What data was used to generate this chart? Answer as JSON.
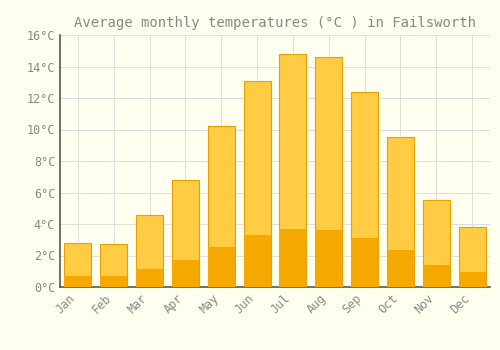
{
  "title": "Average monthly temperatures (°C ) in Failsworth",
  "months": [
    "Jan",
    "Feb",
    "Mar",
    "Apr",
    "May",
    "Jun",
    "Jul",
    "Aug",
    "Sep",
    "Oct",
    "Nov",
    "Dec"
  ],
  "values": [
    2.8,
    2.7,
    4.6,
    6.8,
    10.2,
    13.1,
    14.8,
    14.6,
    12.4,
    9.5,
    5.5,
    3.8
  ],
  "bar_color_top": "#FFCC44",
  "bar_color_bottom": "#F5A800",
  "bar_edge_color": "#E8A000",
  "background_color": "#FFFFF0",
  "grid_color": "#DDDDDD",
  "text_color": "#888888",
  "ylim": [
    0,
    16
  ],
  "yticks": [
    0,
    2,
    4,
    6,
    8,
    10,
    12,
    14,
    16
  ],
  "title_fontsize": 10,
  "tick_fontsize": 8.5
}
